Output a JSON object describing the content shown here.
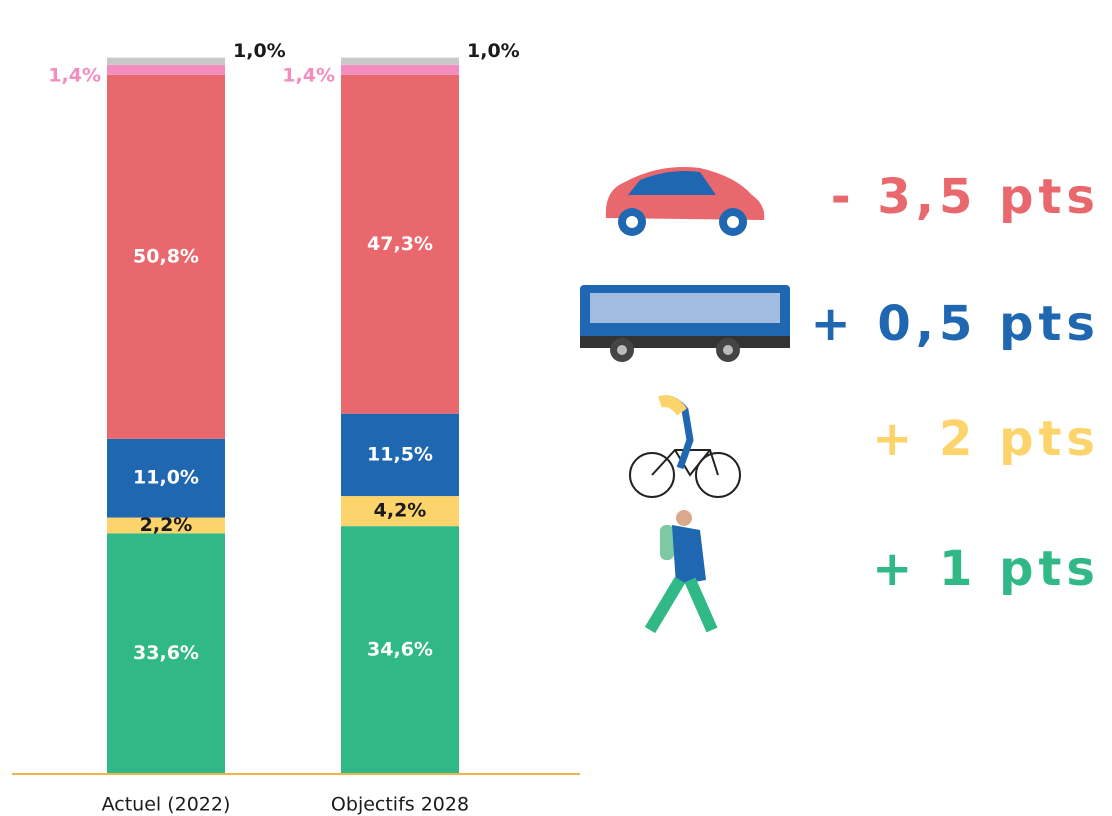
{
  "chart_data": {
    "type": "stacked-bar",
    "categories": [
      "Actuel (2022)",
      "Objectifs 2028"
    ],
    "series": [
      {
        "color": "#30b987",
        "label_color": "#ffffff",
        "values": [
          33.6,
          34.6
        ],
        "value_labels": [
          "33,6%",
          "34,6%"
        ]
      },
      {
        "color": "#fdd36b",
        "label_color": "#1b1b1b",
        "values": [
          2.2,
          4.2
        ],
        "value_labels": [
          "2,2%",
          "4,2%"
        ]
      },
      {
        "color": "#1f67b1",
        "label_color": "#ffffff",
        "values": [
          11.0,
          11.5
        ],
        "value_labels": [
          "11,0%",
          "11,5%"
        ]
      },
      {
        "color": "#e9686e",
        "label_color": "#ffffff",
        "values": [
          50.8,
          47.3
        ],
        "value_labels": [
          "50,8%",
          "47,3%"
        ]
      },
      {
        "color": "#f28dbd",
        "label_color": "#f28dbd",
        "values": [
          1.4,
          1.4
        ],
        "value_labels": [
          "1,4%",
          "1,4%"
        ]
      },
      {
        "color": "#c8c8c8",
        "label_color": "#1b1b1b",
        "values": [
          1.0,
          1.0
        ],
        "value_labels": [
          "1,0%",
          "1,0%"
        ]
      }
    ],
    "ylim": [
      0,
      104
    ],
    "annotations": [
      {
        "text": "- 3,5 pts",
        "color": "#e9686e"
      },
      {
        "text": "+ 0,5 pts",
        "color": "#1f67b1"
      },
      {
        "text": "+ 2 pts",
        "color": "#fdd36b"
      },
      {
        "text": "+ 1 pts",
        "color": "#30b987"
      }
    ]
  }
}
